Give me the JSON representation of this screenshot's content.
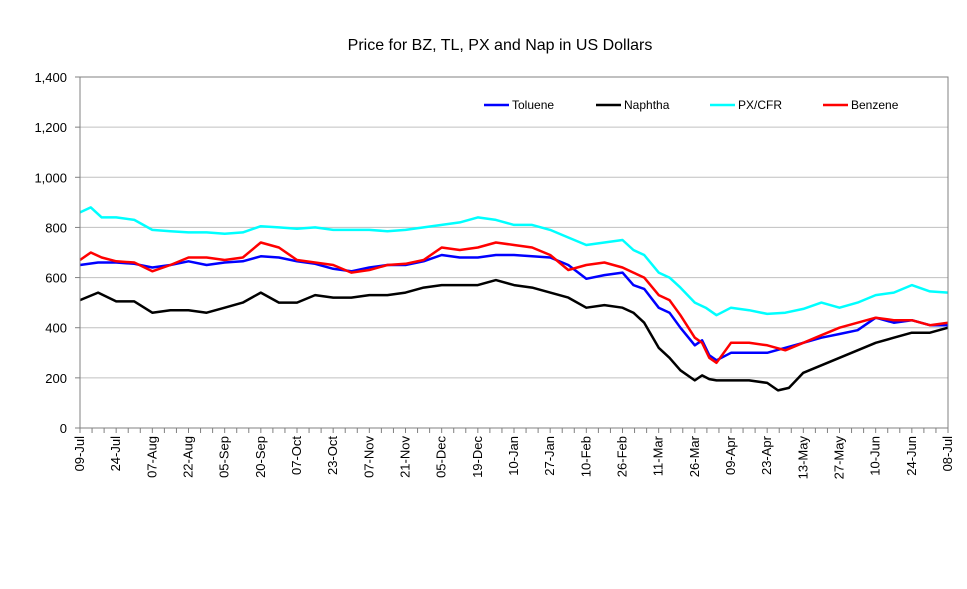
{
  "chart_data": {
    "type": "line",
    "title": "Price for BZ, TL, PX and Nap in US Dollars",
    "xlabel": "",
    "ylabel": "",
    "ylim": [
      0,
      1400
    ],
    "y_ticks": [
      0,
      200,
      400,
      600,
      800,
      1000,
      1200,
      1400
    ],
    "y_tick_labels": [
      "0",
      "200",
      "400",
      "600",
      "800",
      "1,000",
      "1,200",
      "1,400"
    ],
    "grid": "horizontal",
    "legend_position": "top-right",
    "x_tick_labels": [
      "09-Jul",
      "24-Jul",
      "07-Aug",
      "22-Aug",
      "05-Sep",
      "20-Sep",
      "07-Oct",
      "23-Oct",
      "07-Nov",
      "21-Nov",
      "05-Dec",
      "19-Dec",
      "10-Jan",
      "27-Jan",
      "10-Feb",
      "26-Feb",
      "11-Mar",
      "26-Mar",
      "09-Apr",
      "23-Apr",
      "13-May",
      "27-May",
      "10-Jun",
      "24-Jun",
      "08-Jul"
    ],
    "x_tick_positions": [
      0,
      1,
      2,
      3,
      4,
      5,
      6,
      7,
      8,
      9,
      10,
      11,
      12,
      13,
      14,
      15,
      16,
      17,
      18,
      19,
      20,
      21,
      22,
      23,
      24
    ],
    "series": [
      {
        "name": "Toluene",
        "color": "#0000ff",
        "x": [
          0,
          0.5,
          1,
          1.5,
          2,
          2.5,
          3,
          3.5,
          4,
          4.5,
          5,
          5.5,
          6,
          6.5,
          7,
          7.5,
          8,
          8.5,
          9,
          9.5,
          10,
          10.5,
          11,
          11.5,
          12,
          12.5,
          13,
          13.5,
          14,
          14.5,
          15,
          15.3,
          15.6,
          16,
          16.3,
          16.6,
          17,
          17.2,
          17.4,
          17.6,
          18,
          18.5,
          19,
          19.5,
          20,
          20.5,
          21,
          21.5,
          22,
          22.5,
          23,
          23.5,
          24
        ],
        "values": [
          650,
          660,
          660,
          655,
          640,
          650,
          665,
          650,
          660,
          665,
          685,
          680,
          665,
          655,
          635,
          625,
          640,
          650,
          650,
          665,
          690,
          680,
          680,
          690,
          690,
          685,
          680,
          650,
          595,
          610,
          620,
          570,
          555,
          480,
          460,
          400,
          330,
          350,
          290,
          270,
          300,
          300,
          300,
          320,
          340,
          360,
          375,
          390,
          440,
          420,
          430,
          410,
          410
        ]
      },
      {
        "name": "Naphtha",
        "color": "#000000",
        "x": [
          0,
          0.5,
          1,
          1.5,
          2,
          2.5,
          3,
          3.5,
          4,
          4.5,
          5,
          5.5,
          6,
          6.5,
          7,
          7.5,
          8,
          8.5,
          9,
          9.5,
          10,
          10.5,
          11,
          11.5,
          12,
          12.5,
          13,
          13.5,
          14,
          14.5,
          15,
          15.3,
          15.6,
          16,
          16.3,
          16.6,
          17,
          17.2,
          17.4,
          17.6,
          18,
          18.5,
          19,
          19.3,
          19.6,
          20,
          20.5,
          21,
          21.5,
          22,
          22.5,
          23,
          23.5,
          24
        ],
        "values": [
          510,
          540,
          505,
          505,
          460,
          470,
          470,
          460,
          480,
          500,
          540,
          500,
          500,
          530,
          520,
          520,
          530,
          530,
          540,
          560,
          570,
          570,
          570,
          590,
          570,
          560,
          540,
          520,
          480,
          490,
          480,
          460,
          420,
          320,
          280,
          230,
          190,
          210,
          195,
          190,
          190,
          190,
          180,
          150,
          160,
          220,
          250,
          280,
          310,
          340,
          360,
          380,
          380,
          400
        ]
      },
      {
        "name": "PX/CFR",
        "color": "#00ffff",
        "x": [
          0,
          0.3,
          0.6,
          1,
          1.5,
          2,
          2.5,
          3,
          3.5,
          4,
          4.5,
          5,
          5.5,
          6,
          6.5,
          7,
          7.5,
          8,
          8.5,
          9,
          9.5,
          10,
          10.5,
          11,
          11.5,
          12,
          12.5,
          13,
          13.5,
          14,
          14.5,
          15,
          15.3,
          15.6,
          16,
          16.3,
          16.6,
          17,
          17.3,
          17.6,
          18,
          18.5,
          19,
          19.5,
          20,
          20.5,
          21,
          21.5,
          22,
          22.5,
          23,
          23.5,
          24
        ],
        "values": [
          860,
          880,
          840,
          840,
          830,
          790,
          785,
          780,
          780,
          775,
          780,
          805,
          800,
          795,
          800,
          790,
          790,
          790,
          785,
          790,
          800,
          810,
          820,
          840,
          830,
          810,
          810,
          790,
          760,
          730,
          740,
          750,
          710,
          690,
          620,
          600,
          560,
          500,
          480,
          450,
          480,
          470,
          455,
          460,
          475,
          500,
          480,
          500,
          530,
          540,
          570,
          545,
          540
        ]
      },
      {
        "name": "Benzene",
        "color": "#ff0000",
        "x": [
          0,
          0.3,
          0.6,
          1,
          1.5,
          2,
          2.5,
          3,
          3.5,
          4,
          4.5,
          5,
          5.5,
          6,
          6.5,
          7,
          7.5,
          8,
          8.5,
          9,
          9.5,
          10,
          10.5,
          11,
          11.5,
          12,
          12.5,
          13,
          13.5,
          14,
          14.5,
          15,
          15.3,
          15.6,
          16,
          16.3,
          16.6,
          17,
          17.2,
          17.4,
          17.6,
          18,
          18.5,
          19,
          19.5,
          20,
          20.5,
          21,
          21.5,
          22,
          22.5,
          23,
          23.5,
          24
        ],
        "values": [
          670,
          700,
          680,
          665,
          660,
          625,
          650,
          680,
          680,
          670,
          680,
          740,
          720,
          670,
          660,
          650,
          620,
          630,
          650,
          655,
          670,
          720,
          710,
          720,
          740,
          730,
          720,
          690,
          630,
          650,
          660,
          640,
          620,
          600,
          530,
          510,
          450,
          360,
          340,
          280,
          260,
          340,
          340,
          330,
          310,
          340,
          370,
          400,
          420,
          440,
          430,
          430,
          410,
          420
        ]
      }
    ]
  }
}
